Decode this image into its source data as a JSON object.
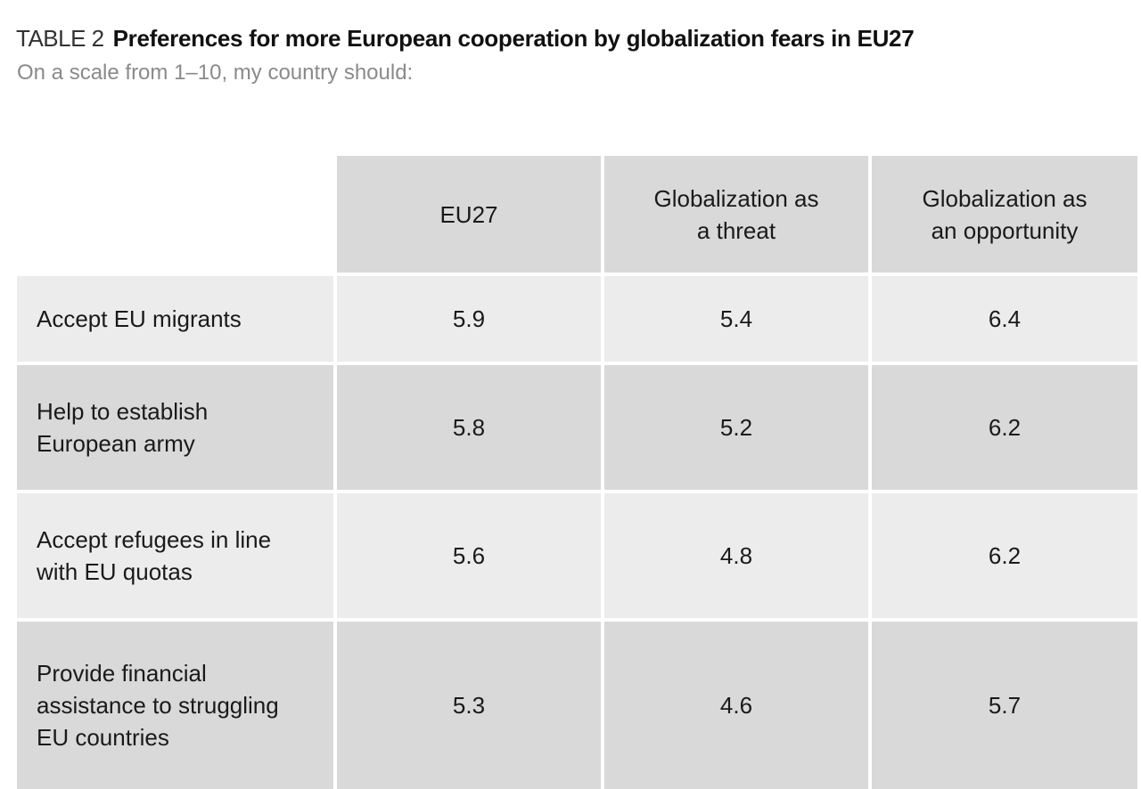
{
  "chart_data": {
    "type": "table",
    "table_label": "TABLE 2",
    "title": "Preferences for more European cooperation by globalization fears in EU27",
    "subtitle": "On a scale from 1–10, my country should:",
    "columns": [
      "EU27",
      "Globalization as\na threat",
      "Globalization as\nan opportunity"
    ],
    "rows": [
      {
        "label": "Accept EU migrants",
        "values": [
          "5.9",
          "5.4",
          "6.4"
        ]
      },
      {
        "label": "Help to establish\nEuropean army",
        "values": [
          "5.8",
          "5.2",
          "6.2"
        ]
      },
      {
        "label": "Accept refugees in line\nwith EU quotas",
        "values": [
          "5.6",
          "4.8",
          "6.2"
        ]
      },
      {
        "label": "Provide financial\nassistance to struggling\nEU countries",
        "values": [
          "5.3",
          "4.6",
          "5.7"
        ]
      }
    ]
  },
  "colors": {
    "header_fill": "#d9d9d9",
    "row_light": "#ececec",
    "row_dark": "#d9d9d9",
    "subtitle_text": "#8a8a8a"
  }
}
